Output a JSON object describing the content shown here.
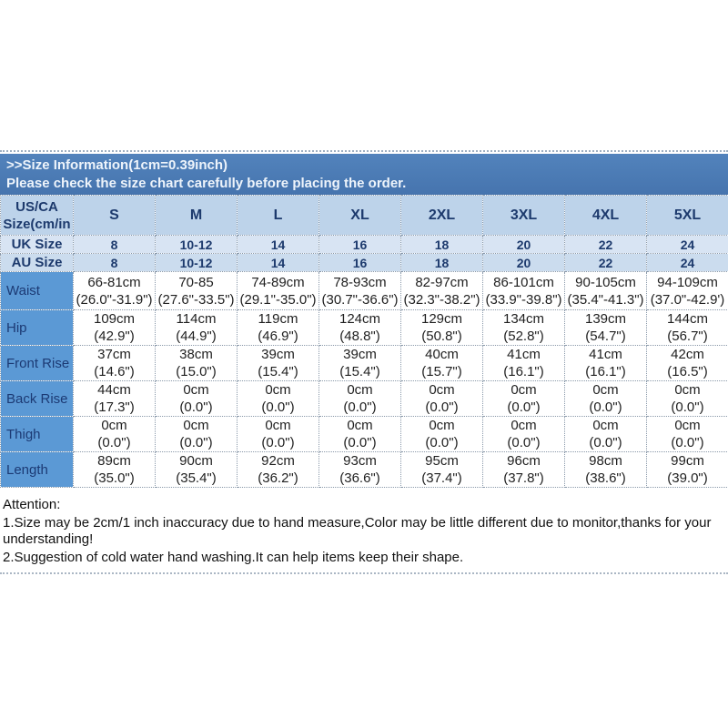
{
  "banner": {
    "title": ">>Size Information(1cm=0.39inch)",
    "subtitle": "Please check the size chart carefully before placing the order."
  },
  "size_table": {
    "corner_label_line1": "US/CA",
    "corner_label_line2": "Size(cm/in",
    "columns": [
      "S",
      "M",
      "L",
      "XL",
      "2XL",
      "3XL",
      "4XL",
      "5XL"
    ],
    "uk_row": {
      "label": "UK Size",
      "values": [
        "8",
        "10-12",
        "14",
        "16",
        "18",
        "20",
        "22",
        "24"
      ]
    },
    "au_row": {
      "label": "AU Size",
      "values": [
        "8",
        "10-12",
        "14",
        "16",
        "18",
        "20",
        "22",
        "24"
      ]
    },
    "measurement_rows": [
      {
        "label": "Waist",
        "cells": [
          [
            "66-81cm",
            "(26.0\"-31.9\")"
          ],
          [
            "70-85",
            "(27.6\"-33.5\")"
          ],
          [
            "74-89cm",
            "(29.1\"-35.0\")"
          ],
          [
            "78-93cm",
            "(30.7\"-36.6\")"
          ],
          [
            "82-97cm",
            "(32.3\"-38.2\")"
          ],
          [
            "86-101cm",
            "(33.9\"-39.8\")"
          ],
          [
            "90-105cm",
            "(35.4\"-41.3\")"
          ],
          [
            "94-109cm",
            "(37.0\"-42.9')"
          ]
        ]
      },
      {
        "label": "Hip",
        "cells": [
          [
            "109cm",
            "(42.9\")"
          ],
          [
            "114cm",
            "(44.9\")"
          ],
          [
            "119cm",
            "(46.9\")"
          ],
          [
            "124cm",
            "(48.8\")"
          ],
          [
            "129cm",
            "(50.8\")"
          ],
          [
            "134cm",
            "(52.8\")"
          ],
          [
            "139cm",
            "(54.7\")"
          ],
          [
            "144cm",
            "(56.7\")"
          ]
        ]
      },
      {
        "label": "Front Rise",
        "cells": [
          [
            "37cm",
            "(14.6\")"
          ],
          [
            "38cm",
            "(15.0\")"
          ],
          [
            "39cm",
            "(15.4\")"
          ],
          [
            "39cm",
            "(15.4\")"
          ],
          [
            "40cm",
            "(15.7\")"
          ],
          [
            "41cm",
            "(16.1\")"
          ],
          [
            "41cm",
            "(16.1\")"
          ],
          [
            "42cm",
            "(16.5\")"
          ]
        ]
      },
      {
        "label": "Back Rise",
        "cells": [
          [
            "44cm",
            "(17.3\")"
          ],
          [
            "0cm",
            "(0.0\")"
          ],
          [
            "0cm",
            "(0.0\")"
          ],
          [
            "0cm",
            "(0.0\")"
          ],
          [
            "0cm",
            "(0.0\")"
          ],
          [
            "0cm",
            "(0.0\")"
          ],
          [
            "0cm",
            "(0.0\")"
          ],
          [
            "0cm",
            "(0.0\")"
          ]
        ]
      },
      {
        "label": "Thigh",
        "cells": [
          [
            "0cm",
            "(0.0\")"
          ],
          [
            "0cm",
            "(0.0\")"
          ],
          [
            "0cm",
            "(0.0\")"
          ],
          [
            "0cm",
            "(0.0\")"
          ],
          [
            "0cm",
            "(0.0\")"
          ],
          [
            "0cm",
            "(0.0\")"
          ],
          [
            "0cm",
            "(0.0\")"
          ],
          [
            "0cm",
            "(0.0\")"
          ]
        ]
      },
      {
        "label": "Length",
        "cells": [
          [
            "89cm",
            "(35.0\")"
          ],
          [
            "90cm",
            "(35.4\")"
          ],
          [
            "92cm",
            "(36.2\")"
          ],
          [
            "93cm",
            "(36.6\")"
          ],
          [
            "95cm",
            "(37.4\")"
          ],
          [
            "96cm",
            "(37.8\")"
          ],
          [
            "98cm",
            "(38.6\")"
          ],
          [
            "99cm",
            "(39.0\")"
          ]
        ]
      }
    ]
  },
  "attention": {
    "heading": "Attention:",
    "notes": [
      "1.Size may be 2cm/1 inch inaccuracy due to hand measure,Color may be little different due to monitor,thanks for your understanding!",
      "2.Suggestion of cold water hand washing.It can help items keep their shape."
    ]
  },
  "colors": {
    "banner_blue": "#4a7ab5",
    "header_light_blue": "#bdd3ea",
    "uk_row_blue": "#d8e4f3",
    "au_row_blue": "#cbdcee",
    "label_column_blue": "#5b99d5",
    "navy_text": "#1d3a6d"
  }
}
